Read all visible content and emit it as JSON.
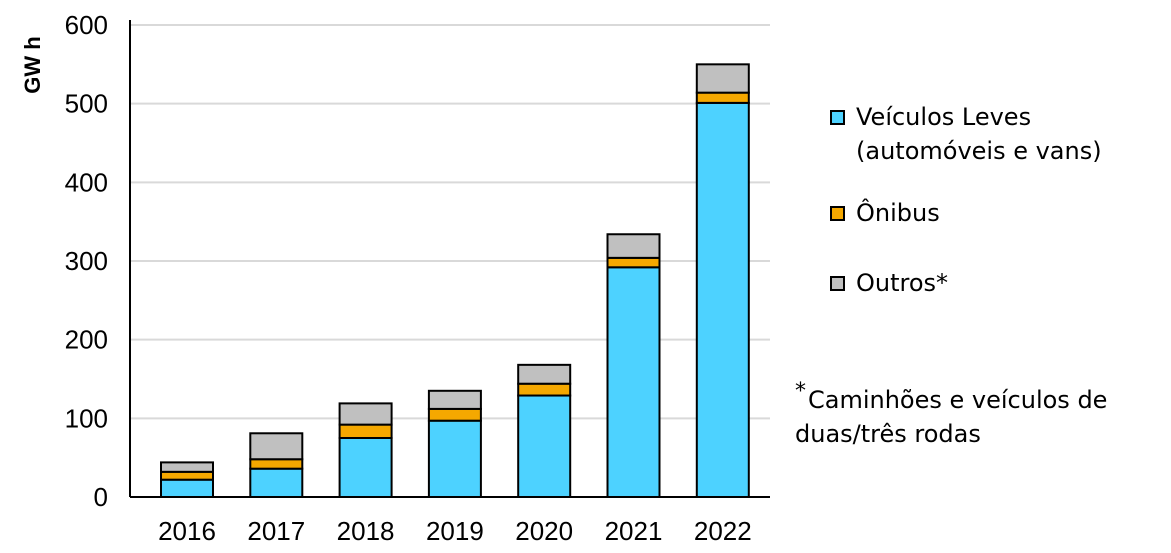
{
  "chart_data": {
    "type": "bar",
    "stacked": true,
    "ylabel": "GW h",
    "ylim": [
      0,
      600
    ],
    "yticks": [
      0,
      100,
      200,
      300,
      400,
      500,
      600
    ],
    "grid": true,
    "categories": [
      "2016",
      "2017",
      "2018",
      "2019",
      "2020",
      "2021",
      "2022"
    ],
    "series": [
      {
        "name": "Veículos Leves\n(automóveis e vans)",
        "color": "#4DD2FF",
        "values": [
          22,
          36,
          75,
          97,
          129,
          292,
          501
        ]
      },
      {
        "name": "Ônibus",
        "color": "#F5A800",
        "values": [
          10,
          12,
          17,
          15,
          15,
          12,
          13
        ]
      },
      {
        "name": "Outros*",
        "color": "#C0C0C0",
        "values": [
          12,
          33,
          27,
          23,
          24,
          30,
          36
        ]
      }
    ],
    "legend_position": "right",
    "note": "Caminhões e veículos de duas/três rodas"
  },
  "legend": {
    "items": [
      {
        "line1": "Veículos Leves",
        "line2": "(automóveis e vans)"
      },
      {
        "line1": "Ônibus",
        "line2": ""
      },
      {
        "line1": "Outros*",
        "line2": ""
      }
    ]
  },
  "note": {
    "marker": "*",
    "line1": "Caminhões e veículos de",
    "line2": "duas/três rodas"
  }
}
